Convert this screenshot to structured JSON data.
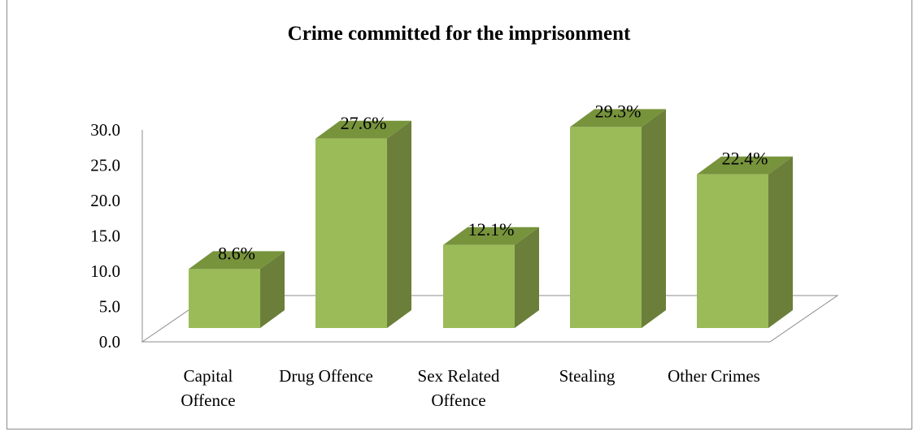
{
  "chart_data": {
    "type": "bar",
    "title": "Crime committed for the imprisonment",
    "categories": [
      "Capital Offence",
      "Drug Offence",
      "Sex Related Offence",
      "Stealing",
      "Other Crimes"
    ],
    "category_lines": [
      [
        "Capital",
        "Offence"
      ],
      [
        "Drug Offence"
      ],
      [
        "Sex Related",
        "Offence"
      ],
      [
        "Stealing"
      ],
      [
        "Other Crimes"
      ]
    ],
    "values": [
      8.6,
      27.6,
      12.1,
      29.3,
      22.4
    ],
    "data_labels": [
      "8.6%",
      "27.6%",
      "12.1%",
      "29.3%",
      "22.4%"
    ],
    "y_ticks": [
      "0.0",
      "5.0",
      "10.0",
      "15.0",
      "20.0",
      "25.0",
      "30.0"
    ],
    "ylim": [
      0,
      30
    ],
    "xlabel": "",
    "ylabel": "",
    "grid": false,
    "legend": "none",
    "style": "3d-column",
    "colors": {
      "front": "#9bbb59",
      "side": "#6b7f3a",
      "top": "#77933c",
      "axis": "#8c8c8c"
    }
  }
}
